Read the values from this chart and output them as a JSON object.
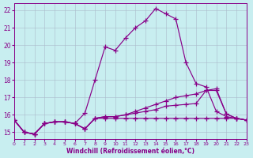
{
  "xlabel": "Windchill (Refroidissement éolien,°C)",
  "xlim": [
    0,
    23
  ],
  "ylim": [
    14.6,
    22.4
  ],
  "xticks": [
    0,
    1,
    2,
    3,
    4,
    5,
    6,
    7,
    8,
    9,
    10,
    11,
    12,
    13,
    14,
    15,
    16,
    17,
    18,
    19,
    20,
    21,
    22,
    23
  ],
  "yticks": [
    15,
    16,
    17,
    18,
    19,
    20,
    21,
    22
  ],
  "bg_color": "#c8eef0",
  "grid_color": "#aabbcc",
  "line_color": "#880088",
  "line1_y": [
    15.7,
    15.0,
    14.9,
    15.5,
    15.6,
    15.6,
    15.5,
    16.1,
    18.0,
    19.9,
    19.7,
    20.4,
    21.0,
    21.4,
    22.1,
    21.8,
    21.5,
    19.0,
    17.8,
    17.6,
    16.2,
    15.9,
    15.8,
    15.7
  ],
  "line2_y": [
    15.7,
    15.0,
    14.9,
    15.5,
    15.6,
    15.6,
    15.5,
    15.2,
    15.8,
    15.9,
    15.9,
    16.0,
    16.2,
    16.4,
    16.6,
    16.8,
    17.0,
    17.1,
    17.2,
    17.4,
    17.5,
    16.05,
    15.8,
    15.7
  ],
  "line3_y": [
    15.7,
    15.0,
    14.9,
    15.5,
    15.6,
    15.6,
    15.5,
    15.2,
    15.8,
    15.9,
    15.9,
    16.0,
    16.1,
    16.2,
    16.3,
    16.5,
    16.55,
    16.6,
    16.65,
    17.4,
    17.4,
    16.05,
    15.8,
    15.7
  ],
  "line4_y": [
    15.7,
    15.0,
    14.9,
    15.5,
    15.6,
    15.6,
    15.5,
    15.2,
    15.8,
    15.8,
    15.8,
    15.8,
    15.8,
    15.8,
    15.8,
    15.8,
    15.8,
    15.8,
    15.8,
    15.8,
    15.8,
    15.8,
    15.8,
    15.7
  ]
}
